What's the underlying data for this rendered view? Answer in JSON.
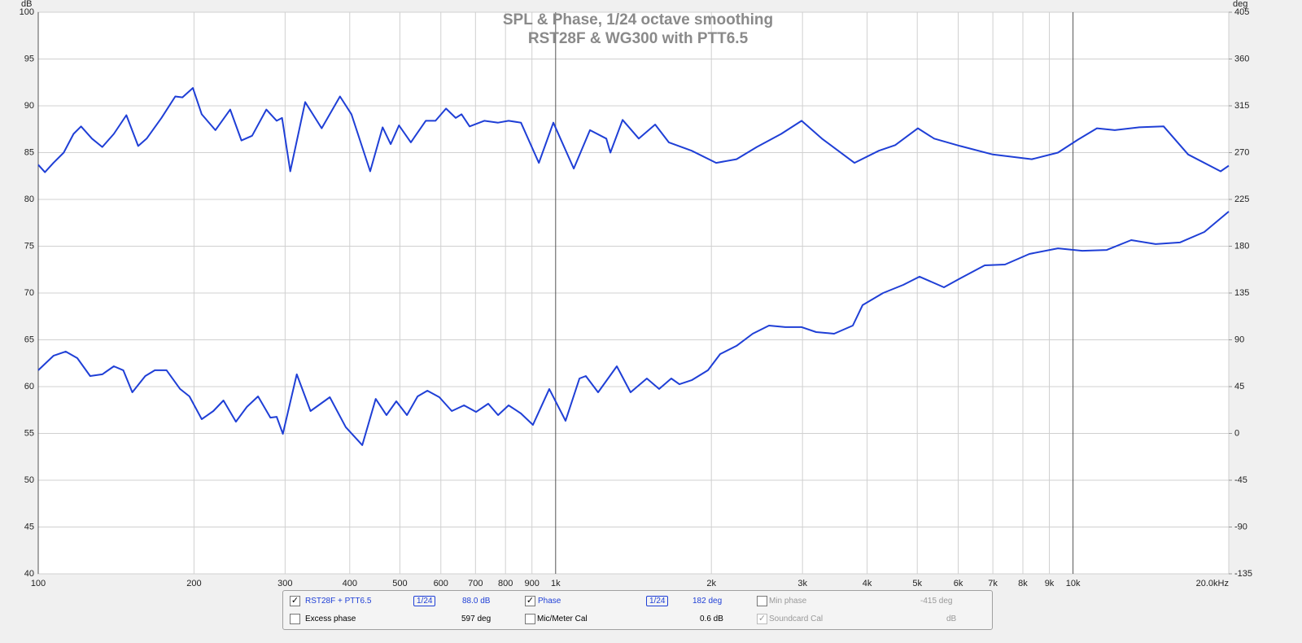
{
  "chart_data": {
    "type": "line",
    "title": "SPL & Phase, 1/24 octave smoothing",
    "subtitle": "RST28F & WG300 with PTT6.5",
    "y_label": "dB",
    "y2_label": "deg",
    "xscale": "log",
    "grid": true,
    "xlim": [
      100,
      20000
    ],
    "xticks": [
      100,
      200,
      300,
      400,
      500,
      600,
      700,
      800,
      900,
      {
        "value": 1000,
        "label": "1k"
      },
      {
        "value": 2000,
        "label": "2k"
      },
      {
        "value": 3000,
        "label": "3k"
      },
      {
        "value": 4000,
        "label": "4k"
      },
      {
        "value": 5000,
        "label": "5k"
      },
      {
        "value": 6000,
        "label": "6k"
      },
      {
        "value": 7000,
        "label": "7k"
      },
      {
        "value": 8000,
        "label": "8k"
      },
      {
        "value": 9000,
        "label": "9k"
      },
      {
        "value": 10000,
        "label": "10k"
      },
      {
        "value": 20000,
        "label": "20.0kHz"
      }
    ],
    "ylim": [
      40,
      100
    ],
    "yticks": [
      40,
      45,
      50,
      55,
      60,
      65,
      70,
      75,
      80,
      85,
      90,
      95,
      100
    ],
    "y2lim": [
      -135,
      405
    ],
    "y2ticks": [
      -135,
      -90,
      -45,
      0,
      45,
      90,
      135,
      180,
      225,
      270,
      315,
      360,
      405
    ],
    "series": [
      {
        "name": "RST28F + PTT6.5",
        "color": "#1f3fd6",
        "x": [
          100,
          103,
          107,
          112,
          117,
          121,
          127,
          133,
          140,
          148,
          156,
          162,
          173,
          184,
          190,
          199,
          207,
          220,
          235,
          247,
          259,
          276,
          289,
          296,
          307,
          328,
          353,
          383,
          403,
          438,
          463,
          480,
          498,
          525,
          561,
          586,
          614,
          641,
          658,
          682,
          728,
          774,
          811,
          857,
          928,
          990,
          1084,
          1165,
          1253,
          1276,
          1347,
          1448,
          1557,
          1655,
          1832,
          2043,
          2237,
          2448,
          2729,
          2988,
          3270,
          3780,
          4214,
          4532,
          5015,
          5391,
          6053,
          6997,
          8326,
          9351,
          10235,
          11122,
          12043,
          13428,
          14970,
          16694,
          19290,
          20000
        ],
        "values": [
          83.7,
          82.9,
          83.9,
          85.0,
          87.0,
          87.8,
          86.5,
          85.6,
          87.0,
          89.0,
          85.7,
          86.5,
          88.7,
          91.0,
          90.9,
          91.9,
          89.1,
          87.4,
          89.6,
          86.3,
          86.8,
          89.6,
          88.4,
          88.7,
          83.0,
          90.4,
          87.6,
          91.0,
          89.1,
          83.0,
          87.7,
          85.9,
          87.9,
          86.1,
          88.4,
          88.4,
          89.7,
          88.7,
          89.1,
          87.8,
          88.4,
          88.2,
          88.4,
          88.2,
          83.9,
          88.2,
          83.3,
          87.4,
          86.5,
          85.0,
          88.5,
          86.5,
          88.0,
          86.1,
          85.2,
          83.9,
          84.3,
          85.6,
          87.0,
          88.4,
          86.5,
          83.9,
          85.2,
          85.8,
          87.6,
          86.5,
          85.7,
          84.8,
          84.3,
          85.0,
          86.4,
          87.6,
          87.4,
          87.7,
          87.8,
          84.8,
          83.0,
          83.6
        ]
      },
      {
        "name": "Phase",
        "color": "#1f3fd6",
        "axis": "y2",
        "x": [
          100,
          107,
          113,
          119,
          126,
          133,
          140,
          146,
          152,
          161,
          168,
          177,
          188,
          196,
          207,
          218,
          228,
          241,
          253,
          266,
          281,
          289,
          297,
          316,
          336,
          366,
          393,
          423,
          449,
          471,
          492,
          516,
          541,
          565,
          596,
          630,
          665,
          702,
          741,
          774,
          811,
          857,
          904,
          972,
          1045,
          1112,
          1144,
          1208,
          1313,
          1396,
          1501,
          1585,
          1673,
          1735,
          1832,
          1970,
          2080,
          2237,
          2404,
          2585,
          2779,
          2988,
          3189,
          3453,
          3753,
          3920,
          4294,
          4698,
          5051,
          5630,
          6053,
          6750,
          7388,
          8236,
          9351,
          10420,
          11620,
          12955,
          14440,
          16090,
          17940,
          20000
        ],
        "values": [
          60.7,
          74.7,
          78.7,
          72.4,
          55.2,
          56.8,
          64.6,
          60.7,
          39.5,
          55.2,
          60.7,
          60.7,
          42.7,
          35.6,
          13.7,
          21.5,
          31.7,
          11.3,
          25.4,
          35.6,
          15.2,
          16.0,
          -0.4,
          56.8,
          21.5,
          34.8,
          6.0,
          -11.3,
          33.2,
          17.6,
          30.9,
          17.6,
          35.6,
          41.1,
          34.8,
          21.5,
          27.0,
          20.7,
          28.6,
          17.6,
          27.0,
          19.2,
          8.2,
          42.7,
          12.1,
          52.8,
          55.2,
          39.5,
          64.6,
          39.5,
          52.8,
          42.7,
          52.8,
          47.3,
          51.2,
          60.7,
          76.3,
          84.2,
          95.9,
          103.7,
          102.2,
          102.2,
          97.4,
          95.9,
          103.7,
          123.3,
          135.0,
          142.8,
          150.7,
          140.5,
          149.1,
          161.6,
          162.4,
          172.6,
          178.0,
          175.6,
          176.4,
          185.9,
          182.0,
          183.6,
          193.7,
          213.3
        ]
      }
    ]
  },
  "panel": {
    "smoothing_1": "1/24",
    "spl_readout": "88.0 dB",
    "smoothing_2": "1/24",
    "phase_readout": "182 deg",
    "min_phase": "Min phase",
    "min_phase_readout": "-415 deg",
    "excess_phase": "Excess phase",
    "excess_phase_readout": "597 deg",
    "mic_cal": "Mic/Meter Cal",
    "mic_cal_readout": "0.6 dB",
    "soundcard_cal": "Soundcard Cal",
    "soundcard_cal_readout": "dB"
  }
}
